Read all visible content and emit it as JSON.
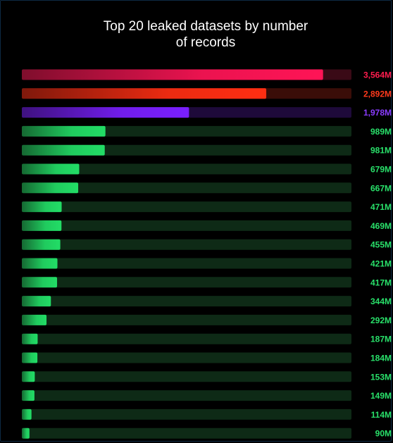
{
  "chart_data": {
    "type": "bar",
    "orientation": "horizontal",
    "title": "Top 20 leaked datasets by number of records",
    "title_lines": [
      "Top 20 leaked datasets by number",
      "of records"
    ],
    "unit": "M",
    "xlim": [
      0,
      3900
    ],
    "values": [
      3564,
      2892,
      1978,
      989,
      981,
      679,
      667,
      471,
      469,
      455,
      421,
      417,
      344,
      292,
      187,
      184,
      153,
      149,
      114,
      90
    ],
    "labels": [
      "3,564M",
      "2,892M",
      "1,978M",
      "989M",
      "981M",
      "679M",
      "667M",
      "471M",
      "469M",
      "455M",
      "421M",
      "417M",
      "344M",
      "292M",
      "187M",
      "184M",
      "153M",
      "149M",
      "114M",
      "90M"
    ],
    "colors": [
      "#ff1456",
      "#ff2e12",
      "#7a1fff",
      "#22dd66",
      "#22dd66",
      "#22dd66",
      "#22dd66",
      "#22dd66",
      "#22dd66",
      "#22dd66",
      "#22dd66",
      "#22dd66",
      "#22dd66",
      "#22dd66",
      "#22dd66",
      "#22dd66",
      "#22dd66",
      "#22dd66",
      "#22dd66",
      "#22dd66"
    ],
    "track_colors": [
      "#3a0a16",
      "#3a0d08",
      "#1e0a3a",
      "#0e2a16",
      "#0e2a16",
      "#0e2a16",
      "#0e2a16",
      "#0e2a16",
      "#0e2a16",
      "#0e2a16",
      "#0e2a16",
      "#0e2a16",
      "#0e2a16",
      "#0e2a16",
      "#0e2a16",
      "#0e2a16",
      "#0e2a16",
      "#0e2a16",
      "#0e2a16",
      "#0e2a16"
    ],
    "label_colors": [
      "#ff1d4e",
      "#ff3a1c",
      "#8a3cff",
      "#29e06a",
      "#29e06a",
      "#29e06a",
      "#29e06a",
      "#29e06a",
      "#29e06a",
      "#29e06a",
      "#29e06a",
      "#29e06a",
      "#29e06a",
      "#29e06a",
      "#29e06a",
      "#29e06a",
      "#29e06a",
      "#29e06a",
      "#29e06a",
      "#29e06a"
    ],
    "grid": false,
    "legend": "none"
  }
}
